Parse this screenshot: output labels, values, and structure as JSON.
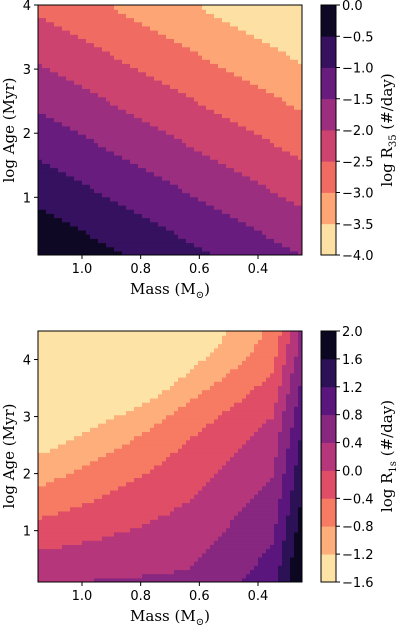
{
  "chart_data": [
    {
      "type": "heatmap",
      "subtype": "filled-contour",
      "xlabel": "Mass (M",
      "xlabel_symbol": "⊙",
      "xlabel_close": ")",
      "ylabel": "log Age (Myr)",
      "colorbar_label_prefix": "log R",
      "colorbar_label_sub": "35",
      "colorbar_label_suffix": " (#/day)",
      "x_reversed": true,
      "xlim": [
        1.15,
        0.25
      ],
      "ylim": [
        0.1,
        4.0
      ],
      "x_ticks": [
        "1.0",
        "0.8",
        "0.6",
        "0.4"
      ],
      "x_tick_values": [
        1.0,
        0.8,
        0.6,
        0.4
      ],
      "y_ticks": [
        "1",
        "2",
        "3",
        "4"
      ],
      "y_tick_values": [
        1,
        2,
        3,
        4
      ],
      "colorbar_range": [
        -4.0,
        0.0
      ],
      "colorbar_ticks": [
        "0.0",
        "−0.5",
        "−1.0",
        "−1.5",
        "−2.0",
        "−2.5",
        "−3.0",
        "−3.5",
        "−4.0"
      ],
      "colorbar_tick_values": [
        0.0,
        -0.5,
        -1.0,
        -1.5,
        -2.0,
        -2.5,
        -3.0,
        -3.5,
        -4.0
      ],
      "levels": [
        -4.0,
        -3.5,
        -3.0,
        -2.5,
        -2.0,
        -1.5,
        -1.0,
        -0.5,
        0.0
      ],
      "colormap": "magma",
      "field_model": {
        "type": "linear",
        "intercept": 0.0,
        "mass_coef": -0.5,
        "logage_coef": -0.5,
        "mass_ref": 1.15,
        "logage_ref": 0.1
      }
    },
    {
      "type": "heatmap",
      "subtype": "filled-contour",
      "xlabel": "Mass (M",
      "xlabel_symbol": "⊙",
      "xlabel_close": ")",
      "ylabel": "log Age (Myr)",
      "colorbar_label_prefix": "log R",
      "colorbar_label_sub": "1s",
      "colorbar_label_suffix": " (#/day)",
      "x_reversed": true,
      "xlim": [
        1.15,
        0.25
      ],
      "ylim": [
        0.1,
        4.5
      ],
      "x_ticks": [
        "1.0",
        "0.8",
        "0.6",
        "0.4"
      ],
      "x_tick_values": [
        1.0,
        0.8,
        0.6,
        0.4
      ],
      "y_ticks": [
        "1",
        "2",
        "3",
        "4"
      ],
      "y_tick_values": [
        1,
        2,
        3,
        4
      ],
      "colorbar_range": [
        -1.6,
        2.0
      ],
      "colorbar_ticks": [
        "2.0",
        "1.6",
        "1.2",
        "0.8",
        "0.4",
        "0.0",
        "−0.4",
        "−0.8",
        "−1.2",
        "−1.6"
      ],
      "colorbar_tick_values": [
        2.0,
        1.6,
        1.2,
        0.8,
        0.4,
        0.0,
        -0.4,
        -0.8,
        -1.2,
        -1.6
      ],
      "levels": [
        -1.6,
        -1.2,
        -0.8,
        -0.4,
        0.0,
        0.4,
        0.8,
        1.2,
        1.6,
        2.0
      ],
      "colormap": "magma",
      "field_model": {
        "type": "mass_age",
        "base": -0.6,
        "mass_slope": -1.6,
        "mass_pivot": 0.78,
        "age_slope": -0.33,
        "age_pivot": 2.5,
        "age_cross": -0.35
      }
    }
  ]
}
